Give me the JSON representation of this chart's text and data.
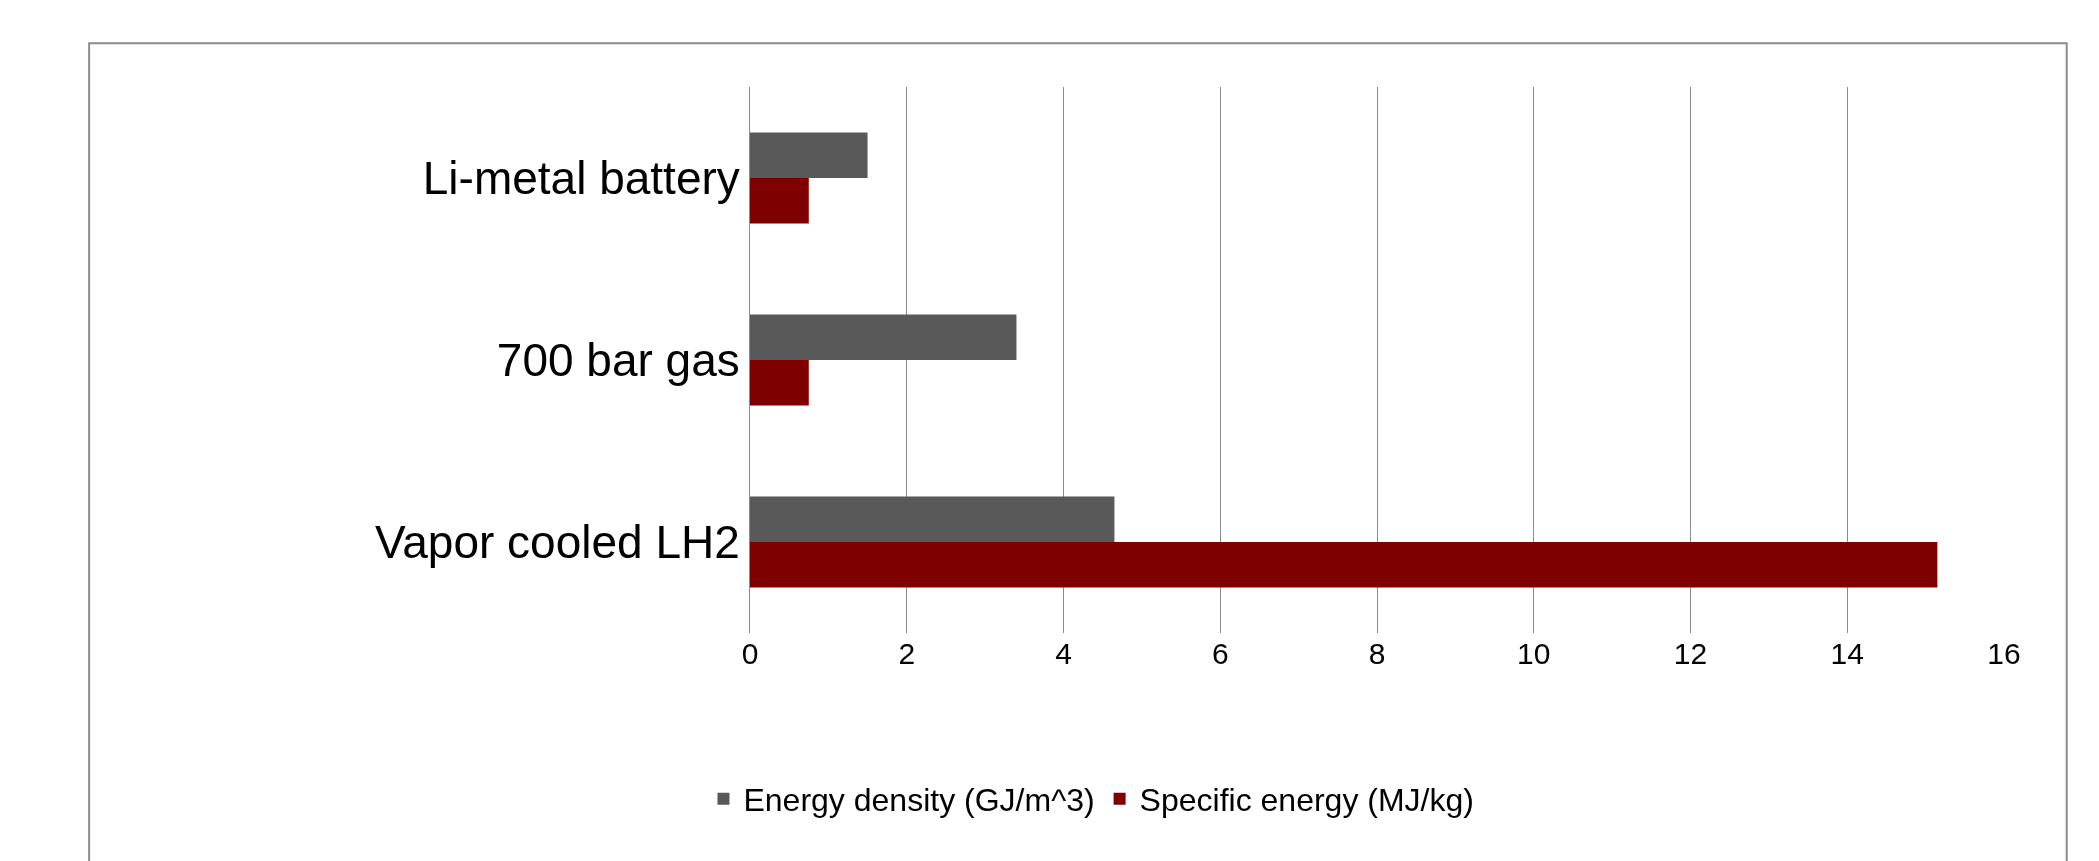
{
  "chart_data": {
    "type": "bar",
    "orientation": "horizontal",
    "categories": [
      "Li-metal battery",
      "700 bar gas",
      "Vapor cooled LH2"
    ],
    "series": [
      {
        "name": "Energy density (GJ/m^3)",
        "color": "#595959",
        "values": [
          1.5,
          3.4,
          4.65
        ]
      },
      {
        "name": "Specific energy (MJ/kg)",
        "color": "#7f0000",
        "values": [
          0.75,
          0.75,
          15.15
        ]
      }
    ],
    "xlim": [
      0,
      16
    ],
    "xticks": [
      0,
      2,
      4,
      6,
      8,
      10,
      12,
      14,
      16
    ],
    "grid": "x",
    "legend": "bottom"
  }
}
